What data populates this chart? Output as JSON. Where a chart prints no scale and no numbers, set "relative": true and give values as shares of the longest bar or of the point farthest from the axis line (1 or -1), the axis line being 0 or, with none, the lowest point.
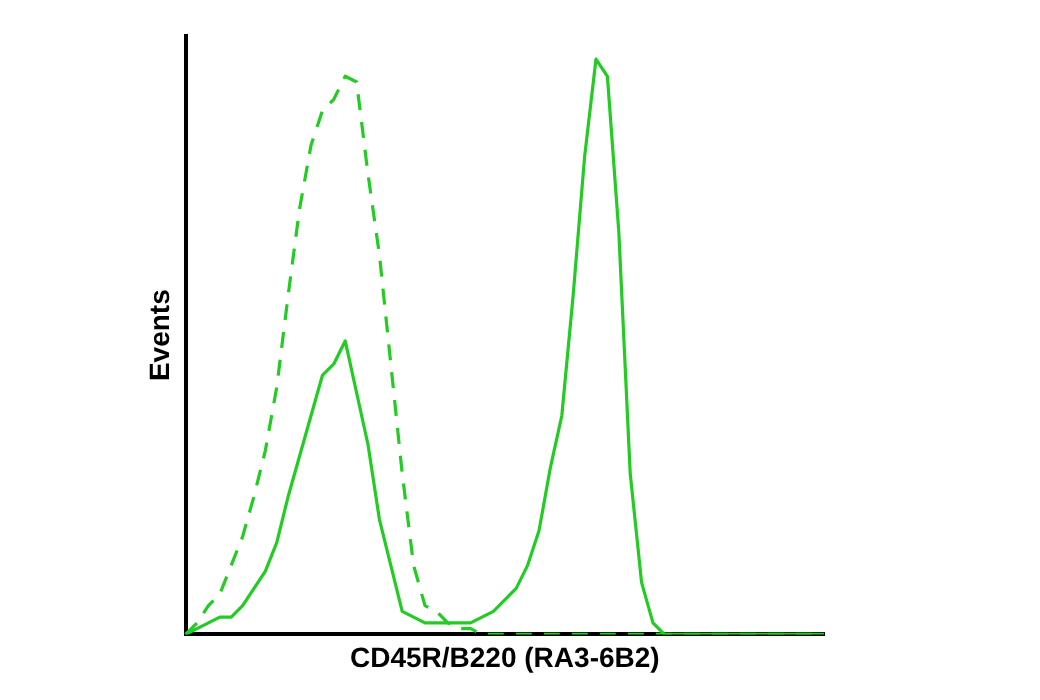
{
  "chart_data": {
    "type": "line",
    "relative": true,
    "xlabel": "CD45R/B220 (RA3-6B2)",
    "ylabel": "Events",
    "categories": [
      null,
      null,
      null,
      null,
      null,
      null,
      null,
      null,
      null,
      null,
      null,
      null,
      null,
      null,
      null,
      null,
      null,
      null,
      null,
      null,
      null,
      null,
      null,
      null,
      null,
      null,
      null,
      null,
      null,
      null,
      null,
      null,
      null,
      null,
      null,
      null,
      null,
      null,
      null,
      null,
      null,
      null,
      null,
      null,
      null,
      null,
      null,
      null,
      null,
      null,
      null,
      null,
      null,
      null,
      null,
      null,
      null
    ],
    "marker": "none",
    "legend": false,
    "grid": false,
    "series": [
      {
        "color": "#22cc22",
        "line_style": "dashed",
        "values": [
          0,
          0.02,
          0.05,
          0.07,
          0.12,
          0.17,
          0.24,
          0.32,
          0.43,
          0.59,
          0.74,
          0.85,
          0.91,
          0.93,
          0.97,
          0.96,
          0.8,
          0.66,
          0.47,
          0.28,
          0.12,
          0.05,
          0.04,
          0.02,
          0.01,
          0.01,
          0,
          0,
          0,
          0,
          0,
          0,
          0,
          0,
          0,
          0,
          0,
          0,
          0,
          0,
          0,
          0,
          0,
          0,
          0,
          0,
          0,
          0,
          0,
          0,
          0,
          0,
          0,
          0,
          0,
          0,
          0
        ]
      },
      {
        "color": "#22cc22",
        "line_style": "solid",
        "values": [
          0,
          0.01,
          0.02,
          0.03,
          0.03,
          0.05,
          0.08,
          0.11,
          0.16,
          0.24,
          0.31,
          0.38,
          0.45,
          0.47,
          0.51,
          0.42,
          0.33,
          0.2,
          0.12,
          0.04,
          0.03,
          0.02,
          0.02,
          0.02,
          0.02,
          0.02,
          0.03,
          0.04,
          0.06,
          0.08,
          0.12,
          0.18,
          0.29,
          0.38,
          0.59,
          0.83,
          1,
          0.97,
          0.7,
          0.28,
          0.09,
          0.02,
          0,
          0,
          0,
          0,
          0,
          0,
          0,
          0,
          0,
          0,
          0,
          0,
          0,
          0,
          0
        ]
      }
    ]
  }
}
